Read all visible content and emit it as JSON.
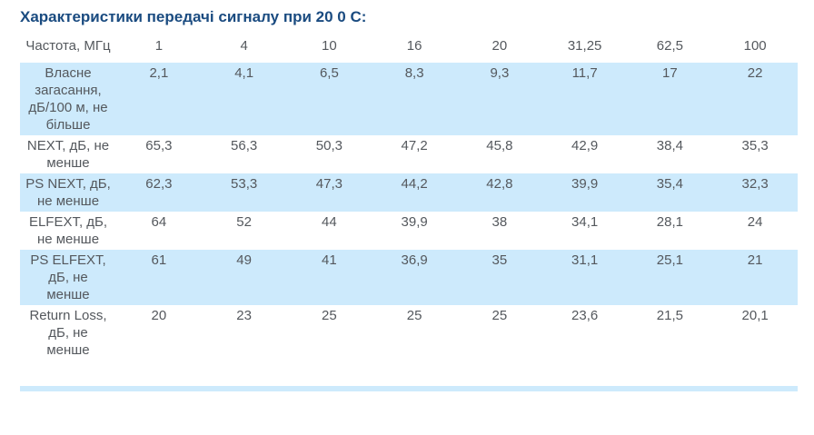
{
  "page": {
    "title": "Характеристики передачі сигналу при 20 0 С:"
  },
  "colors": {
    "title-color": "#1a4b80",
    "text-color": "#54585d",
    "stripe-color": "#cdeafc",
    "bg-color": "#ffffff"
  },
  "table": {
    "header": {
      "label": "Частота, МГц",
      "frequencies": [
        "1",
        "4",
        "10",
        "16",
        "20",
        "31,25",
        "62,5",
        "100"
      ]
    },
    "rows": [
      {
        "label": "Власне загасання, дБ/100 м, не більше",
        "values": [
          "2,1",
          "4,1",
          "6,5",
          "8,3",
          "9,3",
          "11,7",
          "17",
          "22"
        ]
      },
      {
        "label": "NEXT, дБ, не менше",
        "values": [
          "65,3",
          "56,3",
          "50,3",
          "47,2",
          "45,8",
          "42,9",
          "38,4",
          "35,3"
        ]
      },
      {
        "label": "PS NEXT, дБ, не менше",
        "values": [
          "62,3",
          "53,3",
          "47,3",
          "44,2",
          "42,8",
          "39,9",
          "35,4",
          "32,3"
        ]
      },
      {
        "label": "ELFEXT, дБ, не менше",
        "values": [
          "64",
          "52",
          "44",
          "39,9",
          "38",
          "34,1",
          "28,1",
          "24"
        ]
      },
      {
        "label": "PS ELFEXT, дБ, не менше",
        "values": [
          "61",
          "49",
          "41",
          "36,9",
          "35",
          "31,1",
          "25,1",
          "21"
        ]
      },
      {
        "label": "Return Loss, дБ, не менше",
        "values": [
          "20",
          "23",
          "25",
          "25",
          "25",
          "23,6",
          "21,5",
          "20,1"
        ]
      }
    ]
  }
}
